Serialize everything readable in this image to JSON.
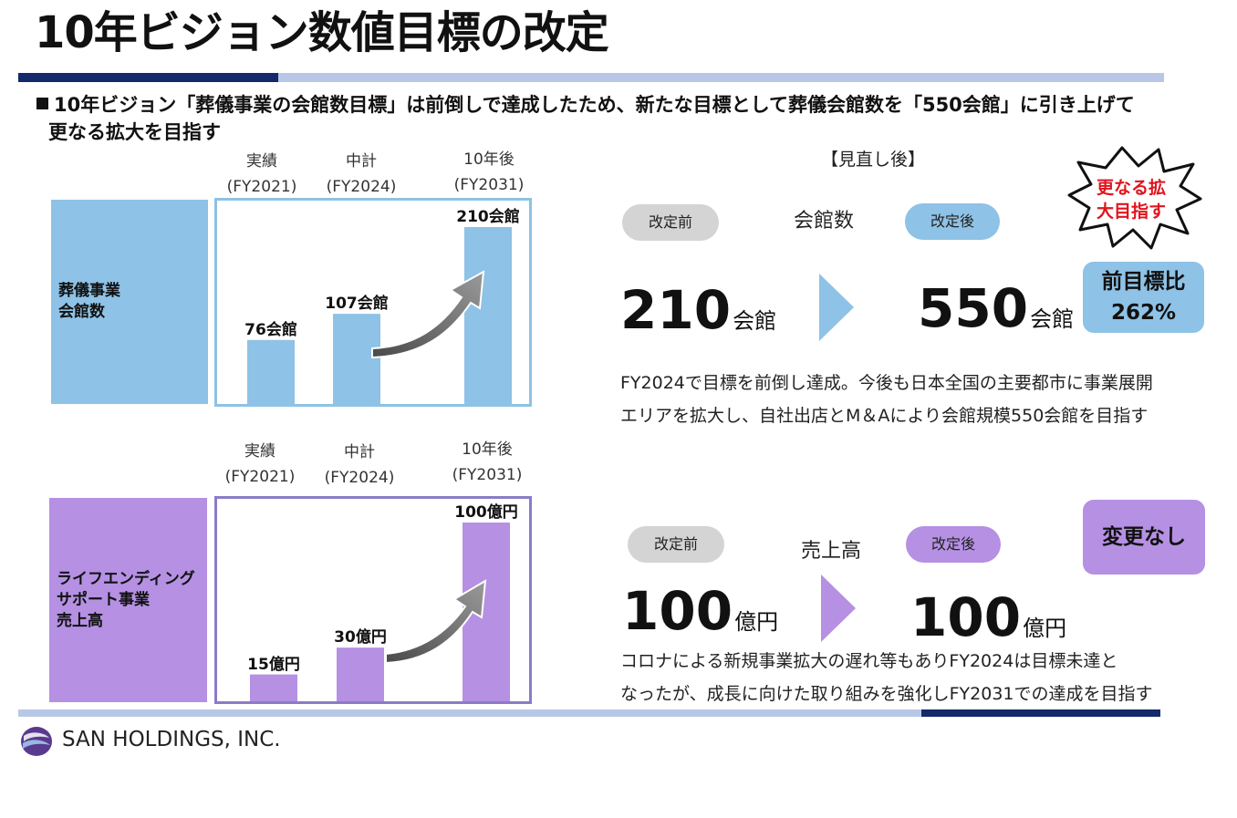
{
  "title": "10年ビジョン数値目標の改定",
  "subtitle": {
    "line1": "10年ビジョン「葬儀事業の会館数目標」は前倒しで達成したため、新たな目標として葬儀会館数を「550会館」に引き上げて",
    "line2": "更なる拡大を目指す"
  },
  "column_headers": [
    {
      "top": "実績",
      "bottom": "(FY2021)"
    },
    {
      "top": "中計",
      "bottom": "(FY2024)"
    },
    {
      "top": "10年後",
      "bottom": "(FY2031)"
    }
  ],
  "revised_header": "【見直し後】",
  "colors": {
    "blue": "#8ec2e6",
    "purple": "#b590e3",
    "navy": "#13296a",
    "pill_gray": "#d4d4d4"
  },
  "sections": {
    "funeral": {
      "label_line1": "葬儀事業",
      "label_line2": "会館数",
      "chart_data": {
        "type": "bar",
        "categories": [
          "実績(FY2021)",
          "中計(FY2024)",
          "10年後(FY2031)"
        ],
        "values": [
          76,
          107,
          210
        ],
        "value_labels": [
          "76会館",
          "107会館",
          "210会館"
        ]
      },
      "before_pill": "改定前",
      "after_pill": "改定後",
      "metric": "会館数",
      "before_value": "210",
      "before_unit": "会館",
      "after_value": "550",
      "after_unit": "会館",
      "burst_line1": "更なる拡",
      "burst_line2": "大目指す",
      "badge_line1": "前目標比",
      "badge_line2": "262%",
      "desc_line1": "FY2024で目標を前倒し達成。今後も日本全国の主要都市に事業展開",
      "desc_line2": "エリアを拡大し、自社出店とM＆Aにより会館規模550会館を目指す"
    },
    "life": {
      "label_line1": "ライフエンディング",
      "label_line2": "サポート事業",
      "label_line3": "売上高",
      "chart_data": {
        "type": "bar",
        "categories": [
          "実績(FY2021)",
          "中計(FY2024)",
          "10年後(FY2031)"
        ],
        "values": [
          15,
          30,
          100
        ],
        "value_labels": [
          "15億円",
          "30億円",
          "100億円"
        ]
      },
      "before_pill": "改定前",
      "after_pill": "改定後",
      "metric": "売上高",
      "before_value": "100",
      "before_unit": "億円",
      "after_value": "100",
      "after_unit": "億円",
      "badge": "変更なし",
      "desc_line1": "コロナによる新規事業拡大の遅れ等もありFY2024は目標未達と",
      "desc_line2": "なったが、成長に向けた取り組みを強化しFY2031での達成を目指す"
    }
  },
  "footer": {
    "company": "SAN HOLDINGS, INC.",
    "logo_icon": "sphere-logo-icon"
  }
}
